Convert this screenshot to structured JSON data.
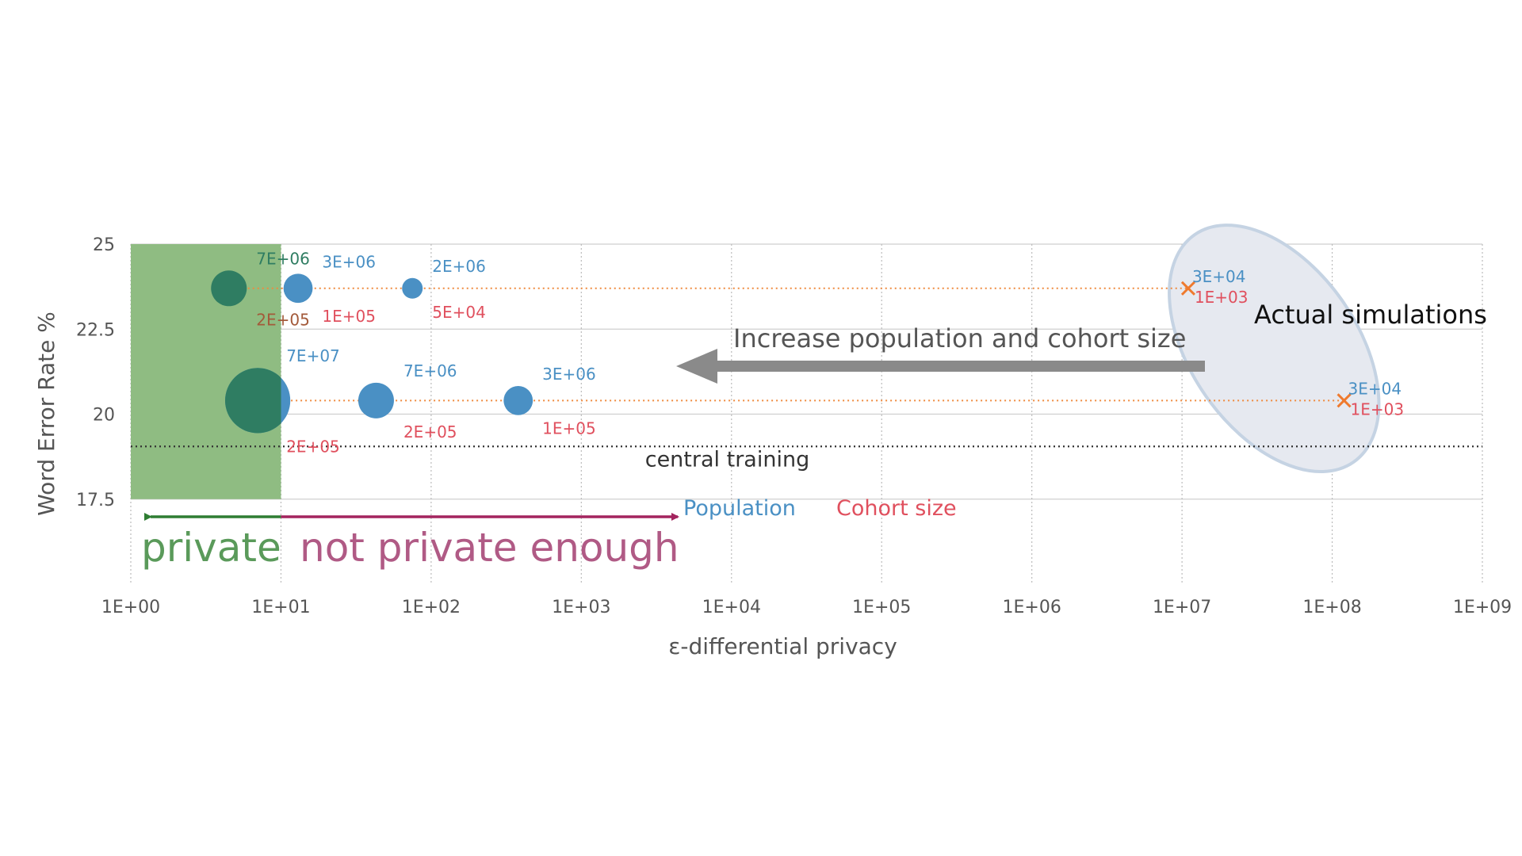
{
  "colors": {
    "private": "#2e7d32",
    "private_region": "#8fbc82",
    "not_private": "#a3245e",
    "not_private_text": "#b05a85",
    "population": "#4a90c4",
    "cohort": "#e0505e",
    "private_point": "#2f7d62",
    "simulated_marker": "#ef7a2e",
    "simulation_ellipse_fill": "#e6e9f0",
    "simulation_ellipse_stroke": "#c5d3e3",
    "big_arrow": "#8a8a8a",
    "central_line": "#333333",
    "dotted_series": "#ef8a3e"
  },
  "chart_data": {
    "type": "scatter",
    "xscale": "log",
    "xlim": [
      1,
      1000000000
    ],
    "ylim": [
      15,
      25
    ],
    "xlabel": "ε-differential privacy",
    "ylabel": "Word Error Rate %",
    "xticks": [
      "1E+00",
      "1E+01",
      "1E+02",
      "1E+03",
      "1E+04",
      "1E+05",
      "1E+06",
      "1E+07",
      "1E+08",
      "1E+09"
    ],
    "yticks": [
      "25",
      "22.5",
      "20",
      "17.5"
    ],
    "ytick_values": [
      25,
      22.5,
      20,
      17.5
    ],
    "grid": true,
    "private_threshold": 10,
    "central_training": {
      "value": 19.05,
      "label": "central training"
    },
    "series": [
      {
        "wer": 23.7,
        "points": [
          {
            "epsilon": 4.5,
            "population": "7E+06",
            "cohort": "2E+05",
            "bubble": 3,
            "private": true
          },
          {
            "epsilon": 13,
            "population": "3E+06",
            "cohort": "1E+05",
            "bubble": 2,
            "private": false
          },
          {
            "epsilon": 75,
            "population": "2E+06",
            "cohort": "5E+04",
            "bubble": 1,
            "private": false
          }
        ],
        "simulated": {
          "epsilon": 11000000,
          "population": "3E+04",
          "cohort": "1E+03"
        }
      },
      {
        "wer": 20.4,
        "points": [
          {
            "epsilon": 7,
            "population": "7E+07",
            "cohort": "2E+05",
            "bubble": 10,
            "private": "partial"
          },
          {
            "epsilon": 43,
            "population": "7E+06",
            "cohort": "2E+05",
            "bubble": 3,
            "private": false
          },
          {
            "epsilon": 380,
            "population": "3E+06",
            "cohort": "1E+05",
            "bubble": 2,
            "private": false
          }
        ],
        "simulated": {
          "epsilon": 120000000,
          "population": "3E+04",
          "cohort": "1E+03"
        }
      }
    ],
    "legend": {
      "population": "Population",
      "cohort": "Cohort size"
    },
    "annotations": {
      "private": "private",
      "not_private": "not private enough",
      "increase": "Increase population and cohort size",
      "actual": "Actual simulations"
    }
  }
}
